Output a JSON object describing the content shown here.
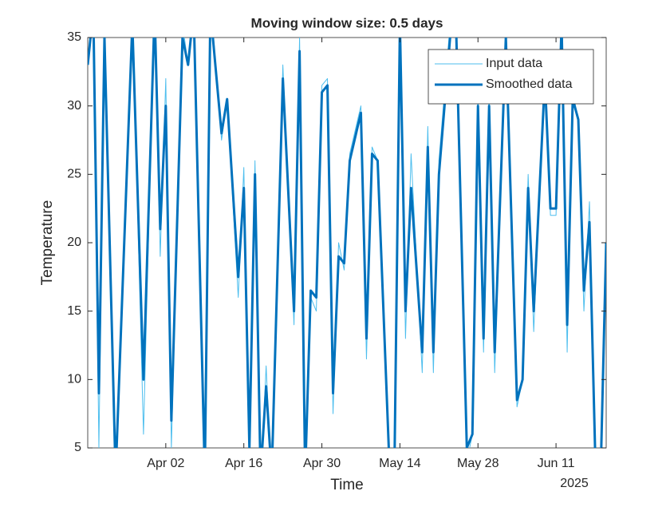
{
  "chart_data": {
    "type": "line",
    "title": "Moving window size: 0.5 days",
    "xlabel": "Time",
    "ylabel": "Temperature",
    "x_secondary_label": "2025",
    "x": [
      "2025-03-19",
      "2025-03-20",
      "2025-03-21",
      "2025-03-22",
      "2025-03-24",
      "2025-03-26",
      "2025-03-27",
      "2025-03-29",
      "2025-03-31",
      "2025-04-01",
      "2025-04-02",
      "2025-04-03",
      "2025-04-05",
      "2025-04-06",
      "2025-04-07",
      "2025-04-09",
      "2025-04-10",
      "2025-04-12",
      "2025-04-13",
      "2025-04-15",
      "2025-04-16",
      "2025-04-17",
      "2025-04-18",
      "2025-04-19",
      "2025-04-20",
      "2025-04-21",
      "2025-04-23",
      "2025-04-25",
      "2025-04-26",
      "2025-04-27",
      "2025-04-28",
      "2025-04-29",
      "2025-04-30",
      "2025-05-01",
      "2025-05-02",
      "2025-05-03",
      "2025-05-04",
      "2025-05-05",
      "2025-05-07",
      "2025-05-08",
      "2025-05-09",
      "2025-05-10",
      "2025-05-12",
      "2025-05-13",
      "2025-05-14",
      "2025-05-15",
      "2025-05-16",
      "2025-05-18",
      "2025-05-19",
      "2025-05-20",
      "2025-05-21",
      "2025-05-23",
      "2025-05-24",
      "2025-05-26",
      "2025-05-27",
      "2025-05-28",
      "2025-05-29",
      "2025-05-30",
      "2025-05-31",
      "2025-06-02",
      "2025-06-04",
      "2025-06-05",
      "2025-06-06",
      "2025-06-07",
      "2025-06-09",
      "2025-06-10",
      "2025-06-11",
      "2025-06-12",
      "2025-06-13",
      "2025-06-14",
      "2025-06-15",
      "2025-06-16",
      "2025-06-17",
      "2025-06-18",
      "2025-06-19",
      "2025-06-20"
    ],
    "series": [
      {
        "name": "Input data",
        "color": "#4DBEEE",
        "width": 1,
        "values": [
          33,
          38,
          5,
          35,
          2,
          25,
          37,
          6,
          38,
          19,
          32,
          5,
          36,
          33,
          38,
          2,
          38,
          27.5,
          30.5,
          16,
          25.5,
          4,
          26,
          2,
          11,
          2,
          33,
          14,
          35,
          2,
          16,
          15,
          31.5,
          32,
          7.5,
          20,
          18,
          26.5,
          30,
          11.5,
          27,
          26,
          4,
          2,
          37,
          13,
          26.5,
          10.5,
          28.5,
          10.5,
          26,
          36,
          38,
          4,
          6,
          31,
          12,
          31,
          10.5,
          36,
          8,
          10,
          25,
          13.5,
          33,
          22,
          22,
          37,
          12,
          31,
          29,
          15,
          23,
          4,
          2,
          20
        ]
      },
      {
        "name": "Smoothed data",
        "color": "#0072BD",
        "width": 3,
        "values": [
          33,
          37,
          9,
          35,
          3,
          25,
          36,
          10,
          37,
          21,
          30,
          7,
          35,
          33,
          37,
          3,
          37,
          28,
          30.5,
          17.5,
          24,
          5,
          25,
          3,
          9.5,
          3,
          32,
          15,
          34,
          3,
          16.5,
          16,
          31,
          31.5,
          9,
          19,
          18.5,
          26,
          29.5,
          13,
          26.5,
          26,
          5,
          3,
          36,
          15,
          24,
          12,
          27,
          12,
          25,
          35,
          37,
          5,
          6,
          30,
          13,
          30,
          12,
          35,
          8.5,
          10,
          24,
          15,
          32,
          22.5,
          22.5,
          36,
          14,
          30.5,
          29,
          16.5,
          21.5,
          5,
          3,
          20
        ]
      }
    ],
    "xlim": [
      "2025-03-19",
      "2025-06-20"
    ],
    "xticks": [
      {
        "value": "2025-04-02",
        "label": "Apr 02"
      },
      {
        "value": "2025-04-16",
        "label": "Apr 16"
      },
      {
        "value": "2025-04-30",
        "label": "Apr 30"
      },
      {
        "value": "2025-05-14",
        "label": "May 14"
      },
      {
        "value": "2025-05-28",
        "label": "May 28"
      },
      {
        "value": "2025-06-11",
        "label": "Jun 11"
      }
    ],
    "ylim": [
      5,
      35
    ],
    "yticks": [
      5,
      10,
      15,
      20,
      25,
      30,
      35
    ],
    "legend": "northeast"
  }
}
